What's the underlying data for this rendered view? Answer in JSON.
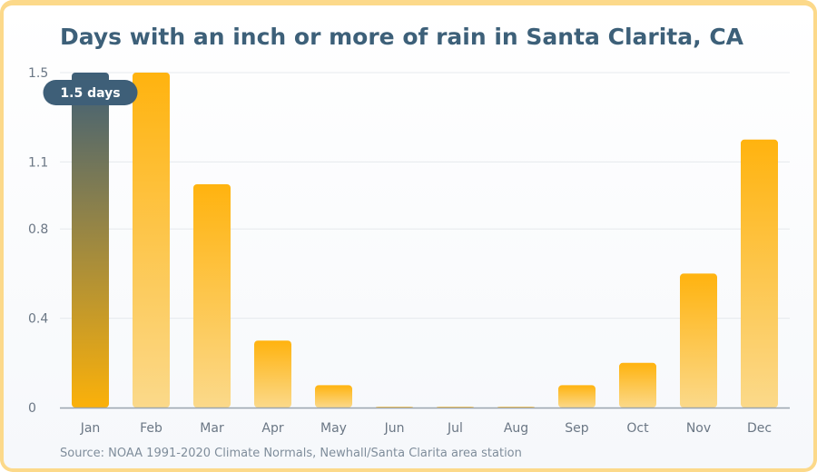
{
  "title": "Days with an inch or more of rain in Santa Clarita, CA",
  "source": "Source: NOAA 1991-2020 Climate Normals, Newhall/Santa Clarita area station",
  "colors": {
    "title": "#3d6079",
    "bar_top": "#ffb30f",
    "bar_bottom": "#fbd98a",
    "highlight_top": "#3e5f78",
    "highlight_bottom": "#fbb10a",
    "callout_bg": "#3e5f78",
    "axis": "#9aa4ae",
    "grid": "#e6e9ed"
  },
  "chart_data": {
    "type": "bar",
    "title": "Days with an inch or more of rain in Santa Clarita, CA",
    "xlabel": "",
    "ylabel": "",
    "categories": [
      "Jan",
      "Feb",
      "Mar",
      "Apr",
      "May",
      "Jun",
      "Jul",
      "Aug",
      "Sep",
      "Oct",
      "Nov",
      "Dec"
    ],
    "values": [
      1.5,
      1.5,
      1.0,
      0.3,
      0.1,
      0,
      0,
      0,
      0.1,
      0.2,
      0.6,
      1.2
    ],
    "ylim": [
      0,
      1.5
    ],
    "yticks": [
      0,
      0.4,
      0.8,
      1.1,
      1.5
    ],
    "grid": true,
    "highlight": {
      "category": "Jan",
      "label": "1.5 days"
    }
  }
}
